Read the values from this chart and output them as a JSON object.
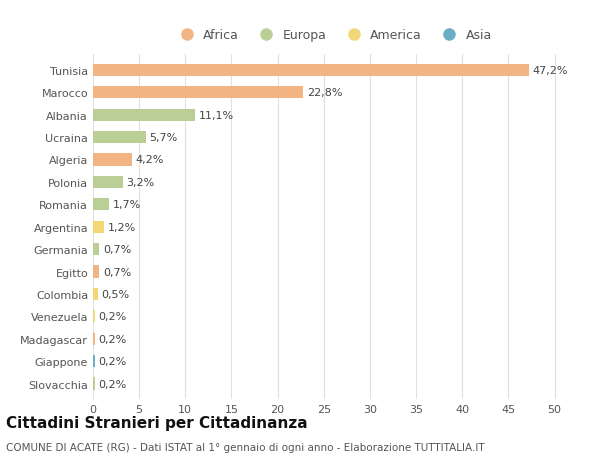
{
  "countries": [
    "Tunisia",
    "Marocco",
    "Albania",
    "Ucraina",
    "Algeria",
    "Polonia",
    "Romania",
    "Argentina",
    "Germania",
    "Egitto",
    "Colombia",
    "Venezuela",
    "Madagascar",
    "Giappone",
    "Slovacchia"
  ],
  "values": [
    47.2,
    22.8,
    11.1,
    5.7,
    4.2,
    3.2,
    1.7,
    1.2,
    0.7,
    0.7,
    0.5,
    0.2,
    0.2,
    0.2,
    0.2
  ],
  "labels": [
    "47,2%",
    "22,8%",
    "11,1%",
    "5,7%",
    "4,2%",
    "3,2%",
    "1,7%",
    "1,2%",
    "0,7%",
    "0,7%",
    "0,5%",
    "0,2%",
    "0,2%",
    "0,2%",
    "0,2%"
  ],
  "continents": [
    "Africa",
    "Africa",
    "Europa",
    "Europa",
    "Africa",
    "Europa",
    "Europa",
    "America",
    "Europa",
    "Africa",
    "America",
    "America",
    "Africa",
    "Asia",
    "Europa"
  ],
  "colors": {
    "Africa": "#F2B482",
    "Europa": "#BACF96",
    "America": "#F0D878",
    "Asia": "#6AAEC6"
  },
  "legend_items": [
    "Africa",
    "Europa",
    "America",
    "Asia"
  ],
  "legend_colors": [
    "#F2B482",
    "#BACF96",
    "#F0D878",
    "#6AAEC6"
  ],
  "title": "Cittadini Stranieri per Cittadinanza",
  "subtitle": "COMUNE DI ACATE (RG) - Dati ISTAT al 1° gennaio di ogni anno - Elaborazione TUTTITALIA.IT",
  "xlim": [
    0,
    52
  ],
  "xticks": [
    0,
    5,
    10,
    15,
    20,
    25,
    30,
    35,
    40,
    45,
    50
  ],
  "background_color": "#ffffff",
  "grid_color": "#e0e0e0",
  "label_fontsize": 8,
  "tick_fontsize": 8,
  "title_fontsize": 11,
  "subtitle_fontsize": 7.5
}
